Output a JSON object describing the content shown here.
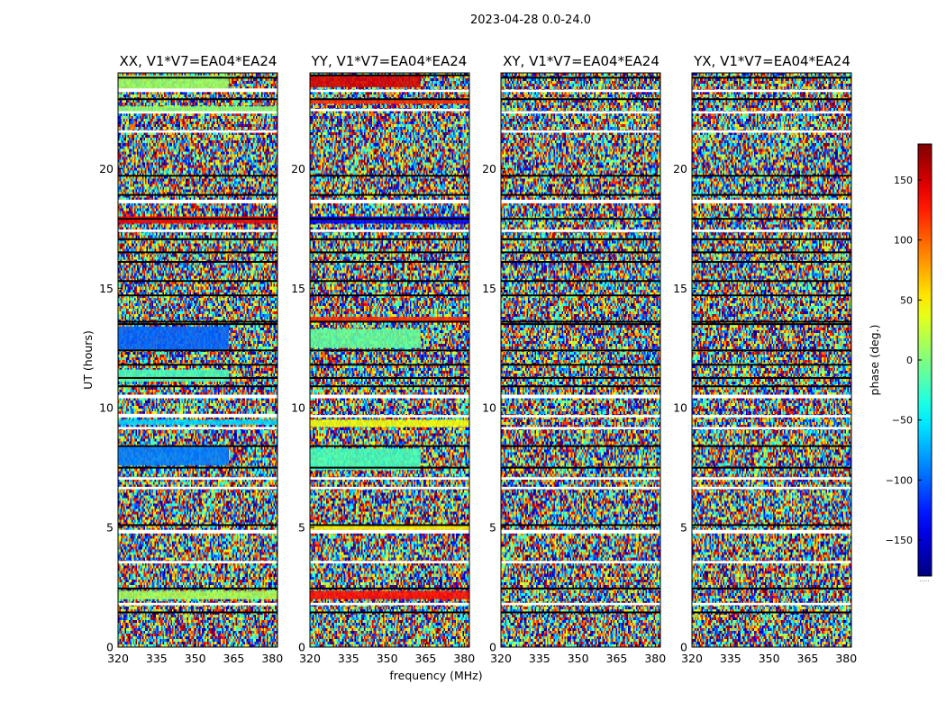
{
  "chart_data": {
    "type": "heatmap",
    "suptitle": "2023-04-28 0.0-24.0",
    "xlabel": "frequency (MHz)",
    "ylabel": "UT (hours)",
    "xlim": [
      320,
      382
    ],
    "ylim": [
      0,
      24
    ],
    "xticks": [
      320,
      335,
      350,
      365,
      380
    ],
    "yticks": [
      0,
      5,
      10,
      15,
      20
    ],
    "colorbar": {
      "label": "phase (deg.)",
      "range": [
        -180,
        180
      ],
      "ticks": [
        150,
        100,
        50,
        0,
        -50,
        -100,
        -150
      ],
      "colormap": "jet",
      "underlabel": "....."
    },
    "panels": [
      {
        "title": "XX, V1*V7=EA04*EA24",
        "gaps": [
          [
            23.2,
            23.35
          ],
          [
            22.3,
            22.4
          ],
          [
            21.5,
            21.6
          ],
          [
            18.55,
            18.7
          ],
          [
            17.35,
            17.45
          ],
          [
            10.4,
            10.55
          ],
          [
            9.6,
            9.75
          ],
          [
            9.1,
            9.2
          ],
          [
            7.0,
            7.1
          ],
          [
            6.6,
            6.7
          ],
          [
            4.75,
            4.9
          ],
          [
            3.5,
            3.6
          ],
          [
            1.75,
            1.85
          ]
        ],
        "dark_lines": [
          23.8,
          22.9,
          19.7,
          18.9,
          17.9,
          17.05,
          16.5,
          16.1,
          15.3,
          14.7,
          13.6,
          13.5,
          12.4,
          11.8,
          11.25,
          10.9,
          8.4,
          7.5,
          5.1,
          2.45,
          1.45
        ],
        "bands": [
          {
            "y": [
              23.3,
              23.9
            ],
            "phase": 10,
            "xmax": 363
          },
          {
            "y": [
              22.35,
              22.6
            ],
            "phase": 5,
            "xmax": 382
          },
          {
            "y": [
              17.7,
              18.0
            ],
            "phase": 140,
            "xmax": 382
          },
          {
            "y": [
              12.4,
              13.4
            ],
            "phase": -100,
            "xmax": 363
          },
          {
            "y": [
              11.1,
              11.6
            ],
            "phase": -20,
            "xmax": 363
          },
          {
            "y": [
              9.3,
              9.5
            ],
            "phase": -60,
            "xmax": 382
          },
          {
            "y": [
              7.6,
              8.4
            ],
            "phase": -90,
            "xmax": 363
          },
          {
            "y": [
              2.0,
              2.35
            ],
            "phase": 15,
            "xmax": 382
          }
        ]
      },
      {
        "title": "YY, V1*V7=EA04*EA24",
        "gaps": [
          [
            23.2,
            23.3
          ],
          [
            22.4,
            22.5
          ],
          [
            18.55,
            18.7
          ],
          [
            17.35,
            17.45
          ],
          [
            10.4,
            10.55
          ],
          [
            9.6,
            9.7
          ],
          [
            7.0,
            7.1
          ],
          [
            6.6,
            6.7
          ],
          [
            4.75,
            4.9
          ],
          [
            3.5,
            3.6
          ],
          [
            1.75,
            1.85
          ]
        ],
        "dark_lines": [
          23.9,
          22.9,
          19.7,
          18.9,
          17.9,
          17.05,
          16.5,
          16.1,
          15.3,
          14.7,
          13.6,
          12.4,
          11.8,
          11.25,
          10.9,
          8.4,
          7.5,
          5.1,
          2.45,
          1.45
        ],
        "bands": [
          {
            "y": [
              23.4,
              23.9
            ],
            "phase": 150,
            "xmax": 363
          },
          {
            "y": [
              22.7,
              22.9
            ],
            "phase": 120,
            "xmax": 382
          },
          {
            "y": [
              17.7,
              18.0
            ],
            "phase": -140,
            "xmax": 382
          },
          {
            "y": [
              13.6,
              13.8
            ],
            "phase": 120,
            "xmax": 382
          },
          {
            "y": [
              12.5,
              13.3
            ],
            "phase": -10,
            "xmax": 363
          },
          {
            "y": [
              9.2,
              9.5
            ],
            "phase": 40,
            "xmax": 382
          },
          {
            "y": [
              7.4,
              8.3
            ],
            "phase": -20,
            "xmax": 363
          },
          {
            "y": [
              2.0,
              2.35
            ],
            "phase": 130,
            "xmax": 382
          },
          {
            "y": [
              4.9,
              5.1
            ],
            "phase": 50,
            "xmax": 382
          }
        ]
      },
      {
        "title": "XY, V1*V7=EA04*EA24",
        "gaps": [
          [
            23.2,
            23.3
          ],
          [
            22.3,
            22.4
          ],
          [
            21.5,
            21.6
          ],
          [
            18.55,
            18.7
          ],
          [
            17.35,
            17.45
          ],
          [
            10.4,
            10.55
          ],
          [
            9.6,
            9.7
          ],
          [
            9.1,
            9.2
          ],
          [
            7.0,
            7.1
          ],
          [
            6.6,
            6.7
          ],
          [
            4.75,
            4.9
          ],
          [
            3.5,
            3.6
          ],
          [
            1.75,
            1.85
          ]
        ],
        "dark_lines": [
          23.8,
          22.9,
          19.7,
          18.9,
          17.9,
          17.05,
          16.5,
          16.1,
          15.3,
          14.7,
          13.6,
          13.5,
          12.4,
          11.8,
          11.25,
          10.9,
          8.4,
          7.5,
          5.1,
          2.45,
          1.45
        ],
        "bands": []
      },
      {
        "title": "YX, V1*V7=EA04*EA24",
        "gaps": [
          [
            23.2,
            23.3
          ],
          [
            22.3,
            22.4
          ],
          [
            21.5,
            21.6
          ],
          [
            18.55,
            18.7
          ],
          [
            17.35,
            17.45
          ],
          [
            10.4,
            10.55
          ],
          [
            9.6,
            9.7
          ],
          [
            9.1,
            9.2
          ],
          [
            7.0,
            7.1
          ],
          [
            6.6,
            6.7
          ],
          [
            4.75,
            4.9
          ],
          [
            3.5,
            3.6
          ],
          [
            1.75,
            1.85
          ]
        ],
        "dark_lines": [
          23.8,
          22.9,
          19.7,
          18.9,
          17.9,
          17.05,
          16.5,
          16.1,
          15.3,
          14.7,
          13.6,
          13.5,
          12.4,
          11.8,
          11.25,
          10.9,
          8.4,
          7.5,
          5.1,
          2.45,
          1.45
        ],
        "bands": []
      }
    ]
  }
}
